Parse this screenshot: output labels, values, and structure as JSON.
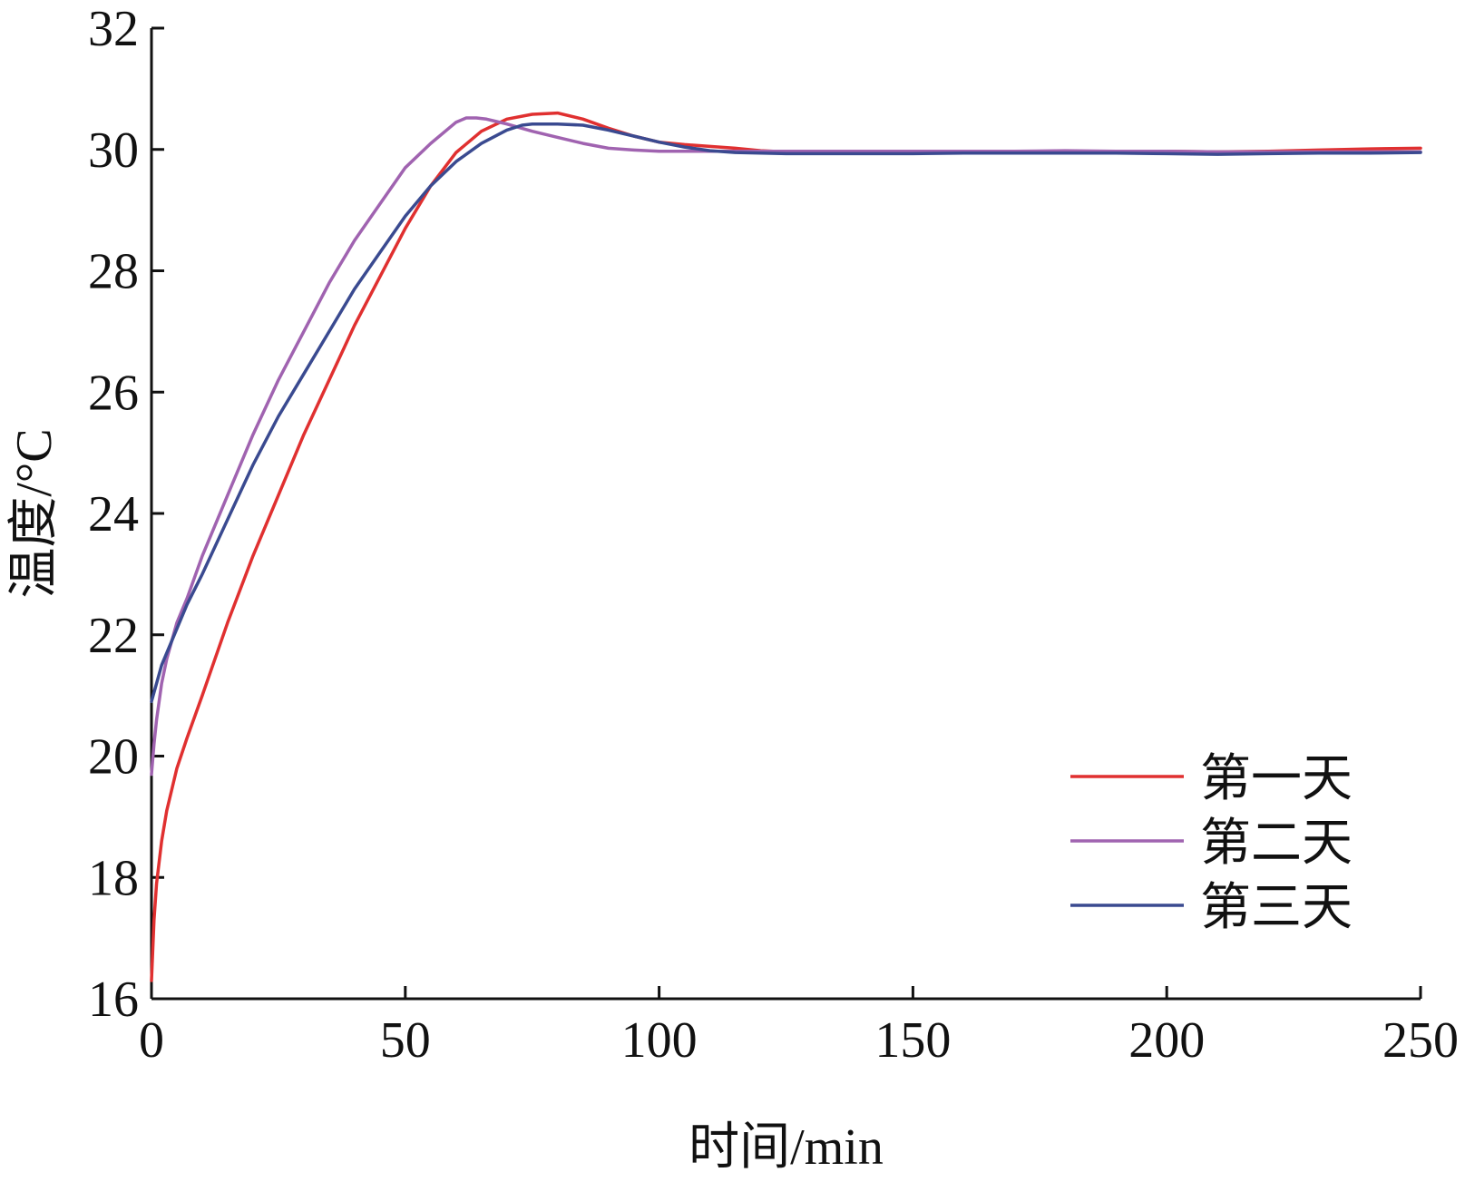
{
  "chart_data": {
    "type": "line",
    "xlabel": "时间/min",
    "ylabel": "温度/°C",
    "xlim": [
      0,
      250
    ],
    "ylim": [
      16,
      32
    ],
    "xticks": [
      0,
      50,
      100,
      150,
      200,
      250
    ],
    "yticks": [
      16,
      18,
      20,
      22,
      24,
      26,
      28,
      30,
      32
    ],
    "grid": false,
    "legend_position": "bottom-right",
    "series": [
      {
        "name": "第一天",
        "color": "#e03030",
        "x": [
          0,
          0.5,
          1,
          2,
          3,
          5,
          7,
          10,
          15,
          20,
          25,
          30,
          35,
          40,
          45,
          50,
          55,
          60,
          65,
          70,
          75,
          80,
          85,
          90,
          95,
          100,
          105,
          110,
          115,
          120,
          125,
          130,
          140,
          150,
          160,
          170,
          180,
          190,
          200,
          210,
          220,
          230,
          240,
          250
        ],
        "y": [
          16.3,
          17.3,
          17.9,
          18.6,
          19.1,
          19.8,
          20.3,
          21.0,
          22.2,
          23.3,
          24.3,
          25.3,
          26.2,
          27.1,
          27.9,
          28.7,
          29.4,
          29.95,
          30.3,
          30.5,
          30.58,
          30.6,
          30.5,
          30.35,
          30.22,
          30.12,
          30.08,
          30.05,
          30.02,
          29.98,
          29.96,
          29.96,
          29.96,
          29.96,
          29.97,
          29.97,
          29.97,
          29.97,
          29.97,
          29.96,
          29.97,
          29.99,
          30.01,
          30.02
        ]
      },
      {
        "name": "第二天",
        "color": "#a063b0",
        "x": [
          0,
          0.5,
          1,
          2,
          3,
          5,
          7,
          10,
          15,
          20,
          25,
          30,
          35,
          40,
          45,
          50,
          55,
          60,
          62,
          64,
          66,
          68,
          70,
          75,
          80,
          85,
          90,
          95,
          100,
          105,
          110,
          120,
          130,
          140,
          150,
          160,
          170,
          180,
          190,
          200,
          210,
          220,
          230,
          240,
          250
        ],
        "y": [
          19.7,
          20.2,
          20.6,
          21.2,
          21.6,
          22.2,
          22.6,
          23.3,
          24.3,
          25.3,
          26.2,
          27.0,
          27.8,
          28.5,
          29.1,
          29.7,
          30.1,
          30.45,
          30.52,
          30.52,
          30.5,
          30.46,
          30.42,
          30.3,
          30.2,
          30.1,
          30.02,
          29.99,
          29.97,
          29.97,
          29.97,
          29.97,
          29.97,
          29.97,
          29.97,
          29.97,
          29.97,
          29.98,
          29.97,
          29.97,
          29.96,
          29.96,
          29.96,
          29.96,
          29.96
        ]
      },
      {
        "name": "第三天",
        "color": "#3a4a90",
        "x": [
          0,
          1,
          2,
          3,
          5,
          7,
          10,
          15,
          20,
          25,
          30,
          35,
          40,
          45,
          50,
          55,
          60,
          65,
          70,
          73,
          75,
          80,
          85,
          90,
          95,
          100,
          105,
          110,
          115,
          120,
          125,
          130,
          140,
          150,
          160,
          170,
          180,
          190,
          200,
          210,
          220,
          230,
          240,
          250
        ],
        "y": [
          20.9,
          21.2,
          21.5,
          21.7,
          22.1,
          22.5,
          23.0,
          23.9,
          24.8,
          25.6,
          26.3,
          27.0,
          27.7,
          28.3,
          28.9,
          29.4,
          29.8,
          30.1,
          30.32,
          30.4,
          30.42,
          30.42,
          30.4,
          30.32,
          30.22,
          30.12,
          30.04,
          29.98,
          29.95,
          29.94,
          29.93,
          29.93,
          29.93,
          29.93,
          29.94,
          29.94,
          29.94,
          29.94,
          29.93,
          29.92,
          29.93,
          29.94,
          29.94,
          29.95
        ]
      }
    ]
  }
}
